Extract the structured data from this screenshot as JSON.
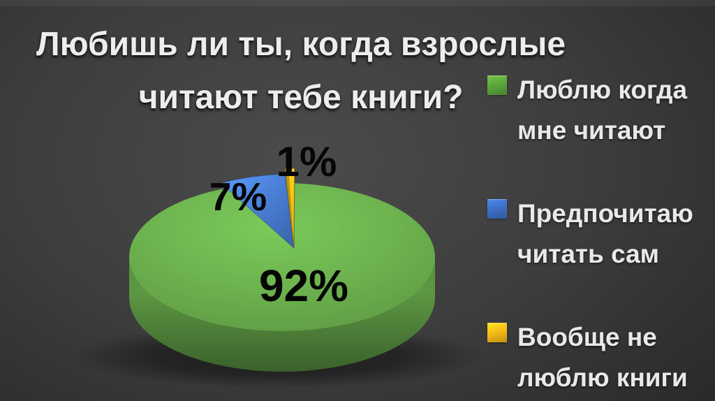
{
  "slide_title": {
    "line1": "Любишь ли ты, когда взрослые",
    "line2": "читают тебе книги?"
  },
  "chart_data": {
    "type": "pie",
    "title": "Любишь ли ты, когда взрослые читают тебе книги?",
    "style": "3d-pie",
    "legend_position": "right",
    "total_percent": 100,
    "slices": [
      {
        "label": "Люблю когда мне читают",
        "value": 92,
        "display": "92%",
        "color": "#6cb14e"
      },
      {
        "label": "Предпочитаю читать сам",
        "value": 7,
        "display": "7%",
        "color": "#4577cf"
      },
      {
        "label": "Вообще не люблю книги",
        "value": 1,
        "display": "1%",
        "color": "#f7bd14"
      }
    ]
  },
  "legend": {
    "items": [
      {
        "lines": [
          "Люблю когда",
          "мне читают"
        ],
        "color": "#5ca53c"
      },
      {
        "lines": [
          "Предпочитаю",
          "читать сам"
        ],
        "color": "#3e6fc6"
      },
      {
        "lines": [
          "Вообще не",
          "люблю книги"
        ],
        "color": "#f5bb17"
      }
    ]
  },
  "colors": {
    "background_center": "#4b4b4b",
    "background_edge": "#1d1d1d",
    "title_text": "#ededed",
    "legend_text": "#e9e9e9",
    "percent_label_text": "#060606"
  }
}
